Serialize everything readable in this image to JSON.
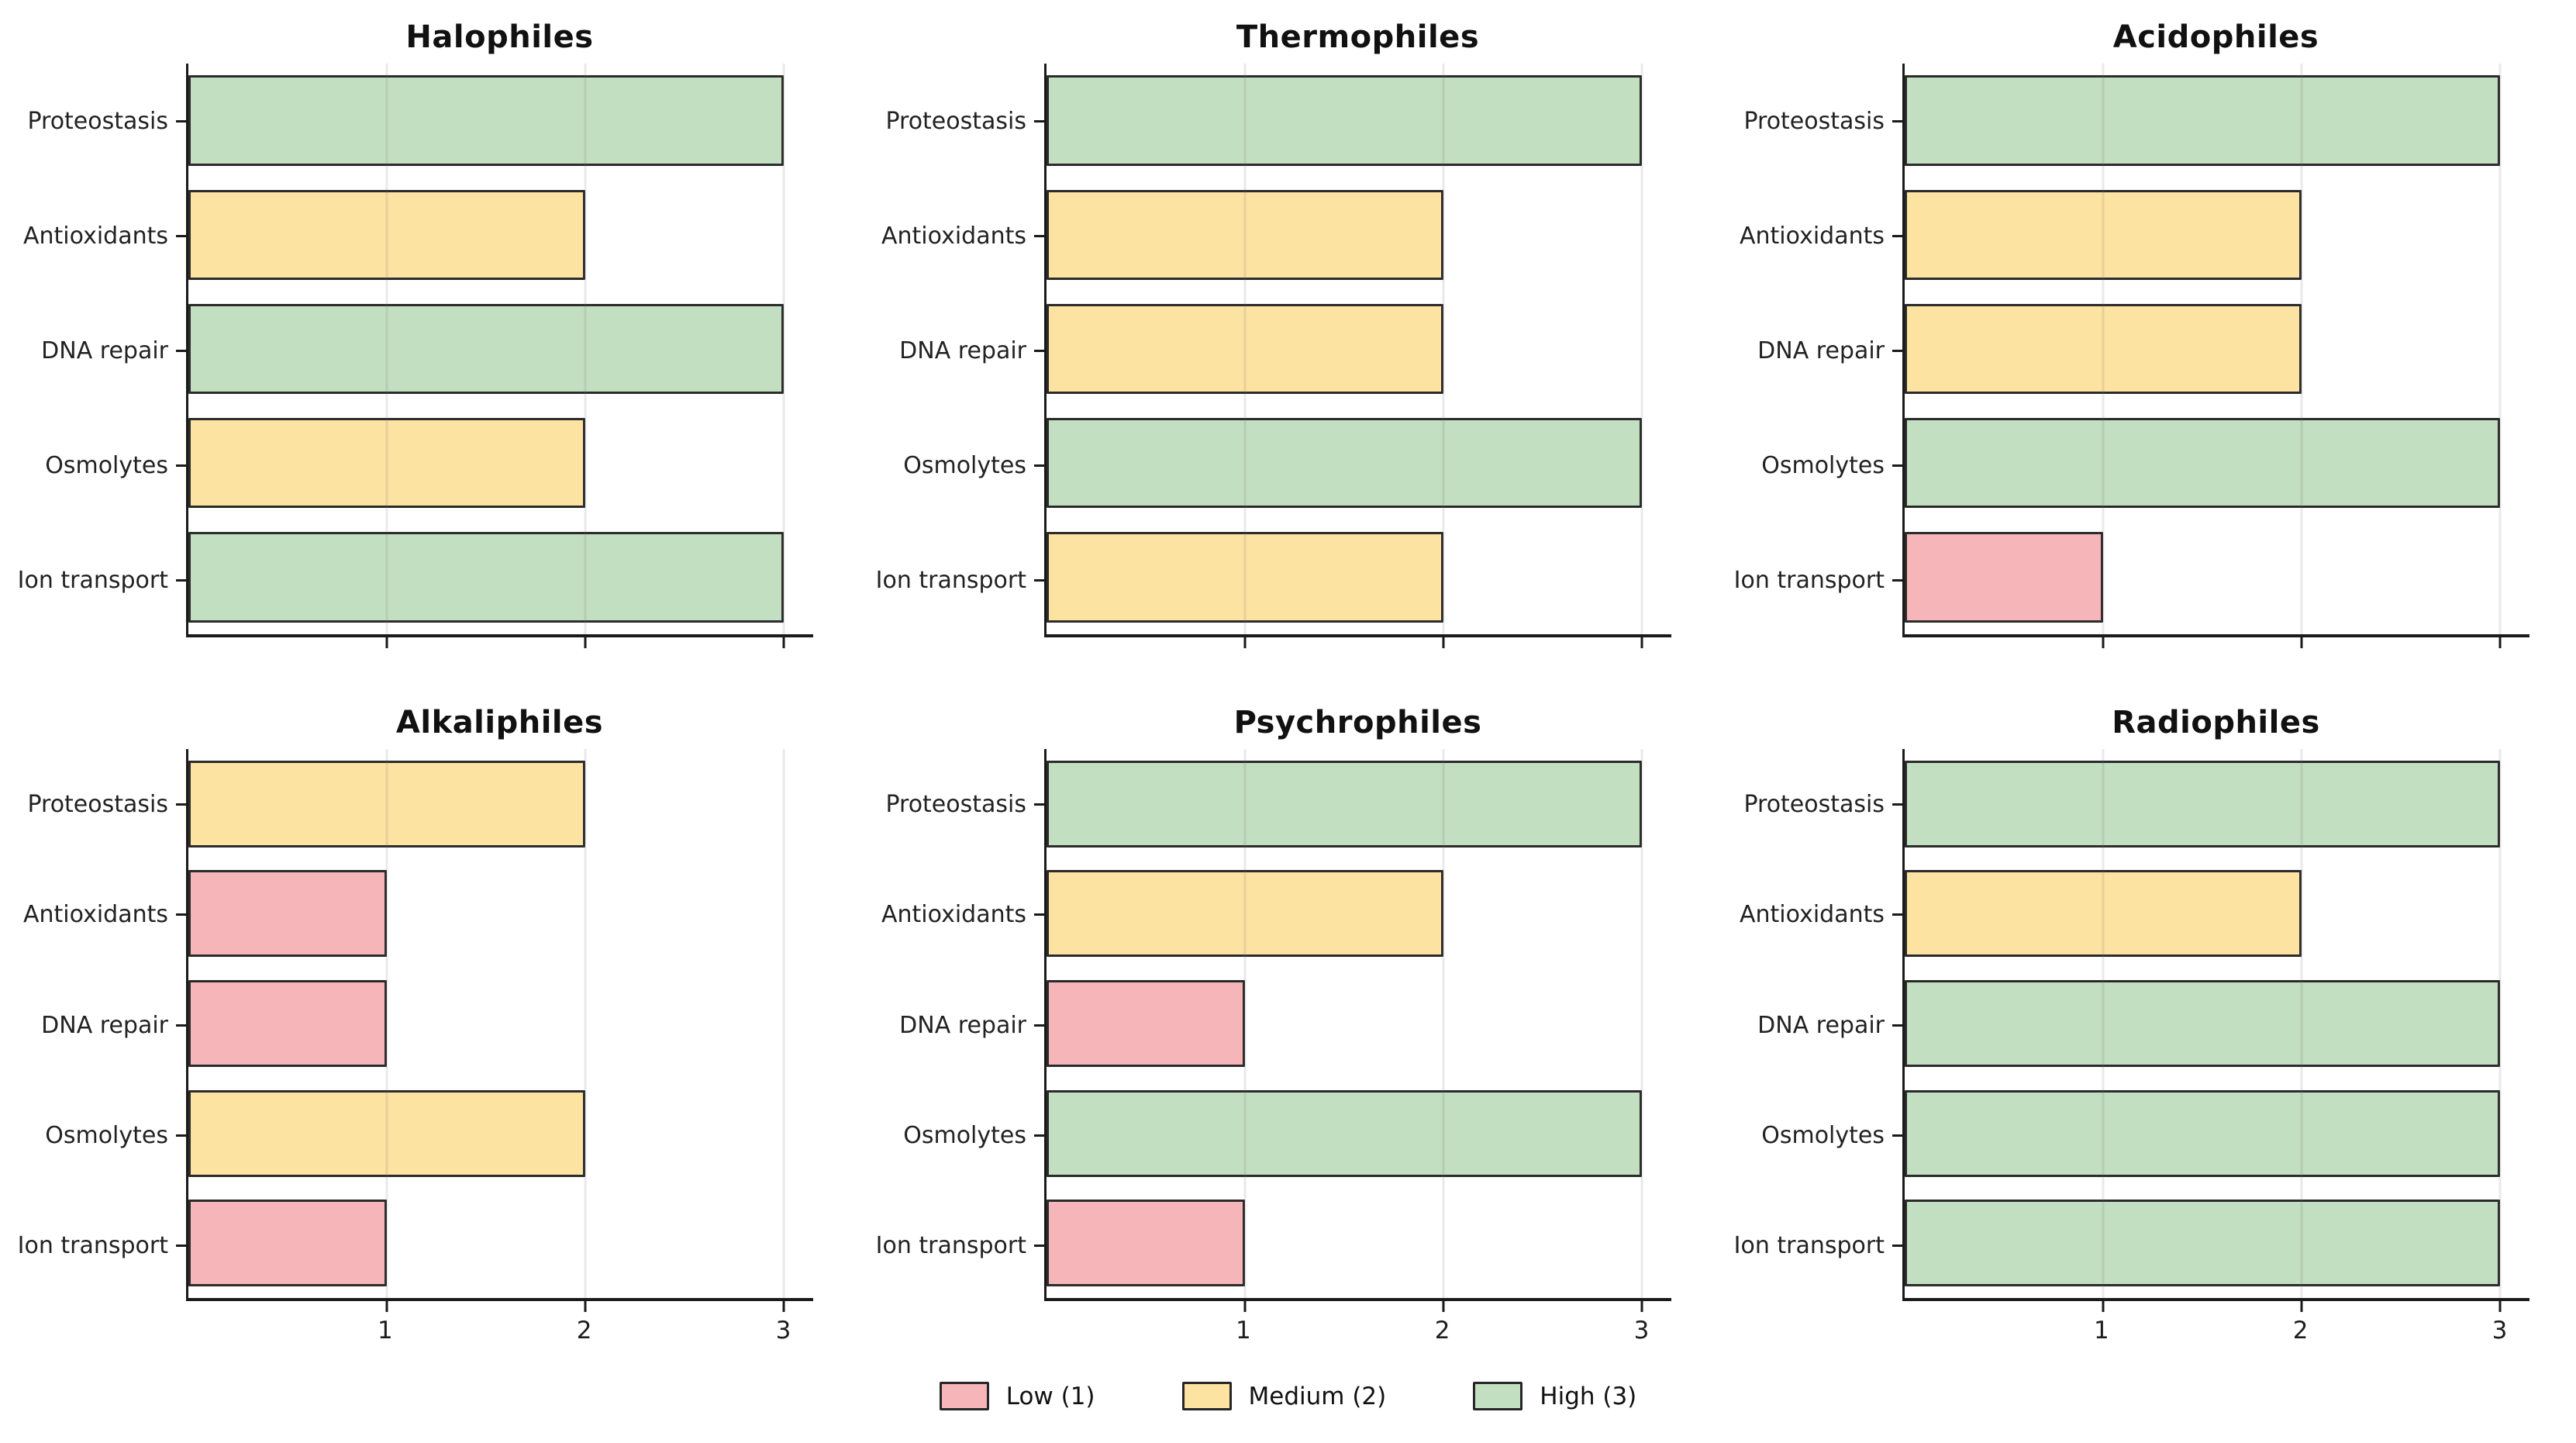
{
  "figure": {
    "background": "#ffffff"
  },
  "colors": {
    "low": "#f6b5b8",
    "medium": "#fde3a1",
    "high": "#c2dfc1",
    "bar_edge": "#2b2b2b",
    "spine": "#1a1a1a",
    "grid": "#e8e8e8"
  },
  "legend": {
    "items": [
      {
        "label": "Low (1)",
        "value": 1,
        "color": "#f6b5b8"
      },
      {
        "label": "Medium (2)",
        "value": 2,
        "color": "#fde3a1"
      },
      {
        "label": "High (3)",
        "value": 3,
        "color": "#c2dfc1"
      }
    ]
  },
  "chart_data": [
    {
      "type": "bar",
      "orientation": "horizontal",
      "title": "Halophiles",
      "categories": [
        "Proteostasis",
        "Antioxidants",
        "DNA repair",
        "Osmolytes",
        "Ion transport"
      ],
      "values": [
        3,
        2,
        3,
        2,
        3
      ],
      "xlim": [
        0,
        3.15
      ],
      "xticks": [
        1,
        2,
        3
      ],
      "show_xtick_labels": false,
      "grid": true,
      "legend_position": "figure-bottom"
    },
    {
      "type": "bar",
      "orientation": "horizontal",
      "title": "Thermophiles",
      "categories": [
        "Proteostasis",
        "Antioxidants",
        "DNA repair",
        "Osmolytes",
        "Ion transport"
      ],
      "values": [
        3,
        2,
        2,
        3,
        2
      ],
      "xlim": [
        0,
        3.15
      ],
      "xticks": [
        1,
        2,
        3
      ],
      "show_xtick_labels": false,
      "grid": true,
      "legend_position": "figure-bottom"
    },
    {
      "type": "bar",
      "orientation": "horizontal",
      "title": "Acidophiles",
      "categories": [
        "Proteostasis",
        "Antioxidants",
        "DNA repair",
        "Osmolytes",
        "Ion transport"
      ],
      "values": [
        3,
        2,
        2,
        3,
        1
      ],
      "xlim": [
        0,
        3.15
      ],
      "xticks": [
        1,
        2,
        3
      ],
      "show_xtick_labels": false,
      "grid": true,
      "legend_position": "figure-bottom"
    },
    {
      "type": "bar",
      "orientation": "horizontal",
      "title": "Alkaliphiles",
      "categories": [
        "Proteostasis",
        "Antioxidants",
        "DNA repair",
        "Osmolytes",
        "Ion transport"
      ],
      "values": [
        2,
        1,
        1,
        2,
        1
      ],
      "xlim": [
        0,
        3.15
      ],
      "xticks": [
        1,
        2,
        3
      ],
      "show_xtick_labels": true,
      "grid": true,
      "legend_position": "figure-bottom"
    },
    {
      "type": "bar",
      "orientation": "horizontal",
      "title": "Psychrophiles",
      "categories": [
        "Proteostasis",
        "Antioxidants",
        "DNA repair",
        "Osmolytes",
        "Ion transport"
      ],
      "values": [
        3,
        2,
        1,
        3,
        1
      ],
      "xlim": [
        0,
        3.15
      ],
      "xticks": [
        1,
        2,
        3
      ],
      "show_xtick_labels": true,
      "grid": true,
      "legend_position": "figure-bottom"
    },
    {
      "type": "bar",
      "orientation": "horizontal",
      "title": "Radiophiles",
      "categories": [
        "Proteostasis",
        "Antioxidants",
        "DNA repair",
        "Osmolytes",
        "Ion transport"
      ],
      "values": [
        3,
        2,
        3,
        3,
        3
      ],
      "xlim": [
        0,
        3.15
      ],
      "xticks": [
        1,
        2,
        3
      ],
      "show_xtick_labels": true,
      "grid": true,
      "legend_position": "figure-bottom"
    }
  ]
}
